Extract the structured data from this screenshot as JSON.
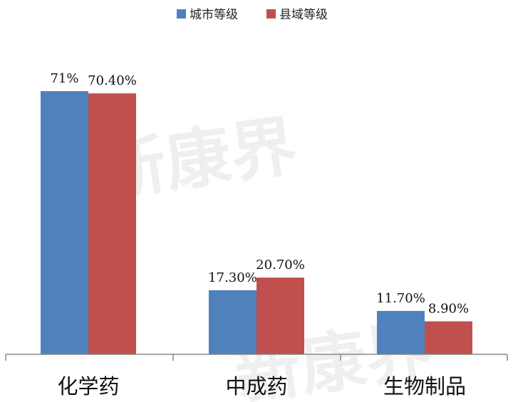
{
  "chart_data": {
    "type": "bar",
    "categories": [
      "化学药",
      "中成药",
      "生物制品"
    ],
    "series": [
      {
        "name": "城市等级",
        "values": [
          71.0,
          17.3,
          11.7
        ],
        "labels": [
          "71%",
          "17.30%",
          "11.70%"
        ],
        "color": "#4F81BD"
      },
      {
        "name": "县域等级",
        "values": [
          70.4,
          20.7,
          8.9
        ],
        "labels": [
          "70.40%",
          "20.70%",
          "8.90%"
        ],
        "color": "#C0504D"
      }
    ],
    "title": "",
    "xlabel": "",
    "ylabel": "",
    "ylim": [
      0,
      100
    ],
    "grid": false,
    "legend": "top-center"
  },
  "watermark": {
    "text": "新康界"
  }
}
